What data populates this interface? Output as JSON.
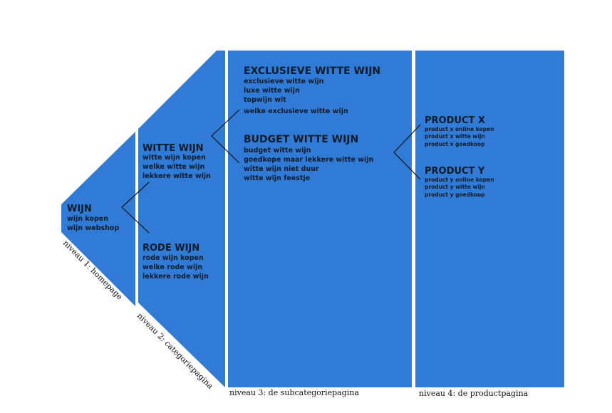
{
  "levels": {
    "level1": {
      "caption": "niveau 1: homepage",
      "title": "WIJN",
      "keywords": [
        "wijn kopen",
        "wijn webshop"
      ]
    },
    "level2": {
      "caption": "niveau 2: categoriepagina",
      "categories": [
        {
          "title": "WITTE WIJN",
          "keywords": [
            "witte wijn kopen",
            "welke witte wijn",
            "lekkere witte wijn"
          ]
        },
        {
          "title": "RODE WIJN",
          "keywords": [
            "rode wijn kopen",
            "welke rode wijn",
            "lekkere rode wijn"
          ]
        }
      ]
    },
    "level3": {
      "caption": "niveau 3: de subcategoriepagina",
      "subcategories": [
        {
          "title": "EXCLUSIEVE WITTE WIJN",
          "keywords": [
            "exclusieve witte wijn",
            "luxe witte wijn",
            "topwijn wit",
            "welke exclusieve witte wijn"
          ]
        },
        {
          "title": "BUDGET WITTE WIJN",
          "keywords": [
            "budget witte wijn",
            "goedkope maar lekkere witte wijn",
            "witte wijn niet duur",
            "witte wijn feestje"
          ]
        }
      ]
    },
    "level4": {
      "caption": "niveau 4: de productpagina",
      "products": [
        {
          "title": "PRODUCT X",
          "keywords": [
            "product x online kopen",
            "product x witte wijn",
            "product x goedkoop"
          ]
        },
        {
          "title": "PRODUCT Y",
          "keywords": [
            "product y online kopen",
            "product y witte wijn",
            "product y goedkoop"
          ]
        }
      ]
    }
  },
  "colors": {
    "panel": "#2f7bd6",
    "text": "#0d1b2a",
    "connector": "#111111"
  }
}
